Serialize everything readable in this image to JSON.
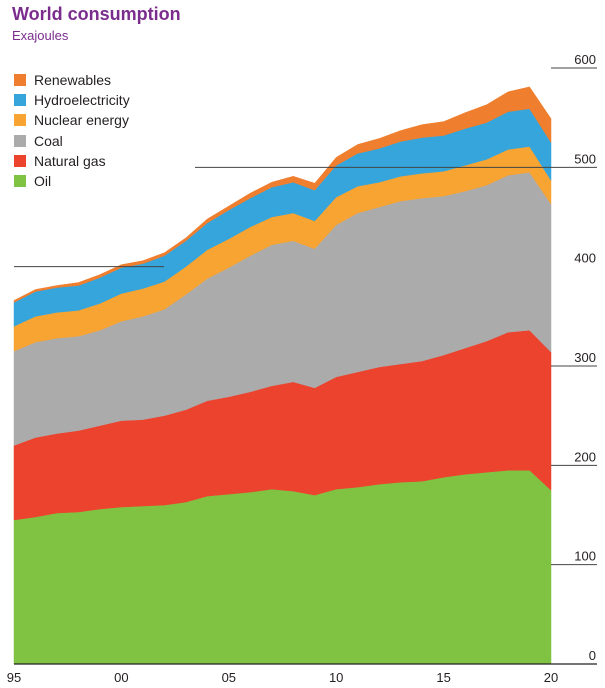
{
  "chart_data": {
    "type": "area",
    "stacked": true,
    "title": "World consumption",
    "subtitle": "Exajoules",
    "x": [
      1995,
      1996,
      1997,
      1998,
      1999,
      2000,
      2001,
      2002,
      2003,
      2004,
      2005,
      2006,
      2007,
      2008,
      2009,
      2010,
      2011,
      2012,
      2013,
      2014,
      2015,
      2016,
      2017,
      2018,
      2019,
      2020
    ],
    "x_tick_labels": [
      "95",
      "00",
      "05",
      "10",
      "15",
      "20"
    ],
    "x_tick_values": [
      1995,
      2000,
      2005,
      2010,
      2015,
      2020
    ],
    "y_tick_labels": [
      "0",
      "100",
      "200",
      "300",
      "400",
      "500",
      "600"
    ],
    "ylim": [
      0,
      600
    ],
    "y_axis_position": "right",
    "series": [
      {
        "name": "Oil",
        "color": "#80c342",
        "values": [
          145,
          148,
          152,
          153,
          156,
          158,
          159,
          160,
          163,
          169,
          171,
          173,
          176,
          174,
          170,
          176,
          178,
          181,
          183,
          184,
          188,
          191,
          193,
          195,
          195,
          175
        ]
      },
      {
        "name": "Natural gas",
        "color": "#eb432e",
        "values": [
          75,
          80,
          80,
          82,
          84,
          87,
          87,
          90,
          93,
          96,
          98,
          101,
          104,
          110,
          108,
          113,
          116,
          118,
          119,
          121,
          123,
          127,
          132,
          139,
          141,
          139
        ]
      },
      {
        "name": "Coal",
        "color": "#ababab",
        "values": [
          95,
          96,
          96,
          95,
          96,
          100,
          104,
          107,
          116,
          123,
          130,
          137,
          142,
          142,
          140,
          153,
          160,
          161,
          164,
          164,
          160,
          158,
          157,
          158,
          159,
          149
        ]
      },
      {
        "name": "Nuclear energy",
        "color": "#f7a432",
        "values": [
          25,
          26,
          26,
          26,
          27,
          28,
          28,
          28,
          28,
          29,
          29,
          29,
          28,
          28,
          28,
          28,
          27,
          25,
          25,
          25,
          25,
          26,
          26,
          26,
          26,
          24
        ]
      },
      {
        "name": "Hydroelectricity",
        "color": "#35a5dc",
        "values": [
          24,
          25,
          25,
          25,
          26,
          26,
          25,
          26,
          26,
          27,
          29,
          29,
          30,
          31,
          31,
          32,
          33,
          34,
          35,
          36,
          36,
          37,
          37,
          38,
          38,
          38
        ]
      },
      {
        "name": "Renewables",
        "color": "#ef7e2e",
        "values": [
          2,
          2,
          2,
          3,
          3,
          3,
          3,
          3,
          3,
          4,
          4,
          5,
          5,
          6,
          7,
          8,
          9,
          10,
          11,
          13,
          14,
          16,
          18,
          20,
          22,
          24
        ]
      }
    ],
    "legend_order": [
      "Renewables",
      "Hydroelectricity",
      "Nuclear energy",
      "Coal",
      "Natural gas",
      "Oil"
    ],
    "legend_position": "top-left"
  }
}
